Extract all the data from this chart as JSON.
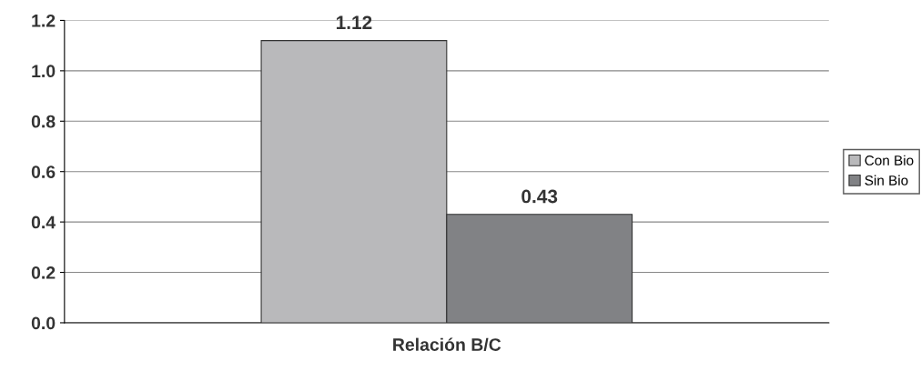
{
  "chart_data": {
    "type": "bar",
    "categories": [
      "Relación B/C"
    ],
    "series": [
      {
        "name": "Con Bio",
        "color": "#b9b9bb",
        "values": [
          1.12
        ]
      },
      {
        "name": "Sin Bio",
        "color": "#818285",
        "values": [
          0.43
        ]
      }
    ],
    "ylim": [
      0,
      1.2
    ],
    "yticks": [
      {
        "value": 0,
        "label": "0.0"
      },
      {
        "value": 0.2,
        "label": "0.2"
      },
      {
        "value": 0.4,
        "label": "0.4"
      },
      {
        "value": 0.6,
        "label": "0.6"
      },
      {
        "value": 0.8,
        "label": "0.8"
      },
      {
        "value": 1.0,
        "label": "1.0"
      },
      {
        "value": 1.2,
        "label": "1.2"
      }
    ],
    "grid": "y",
    "legend": "right",
    "data_labels": true
  }
}
